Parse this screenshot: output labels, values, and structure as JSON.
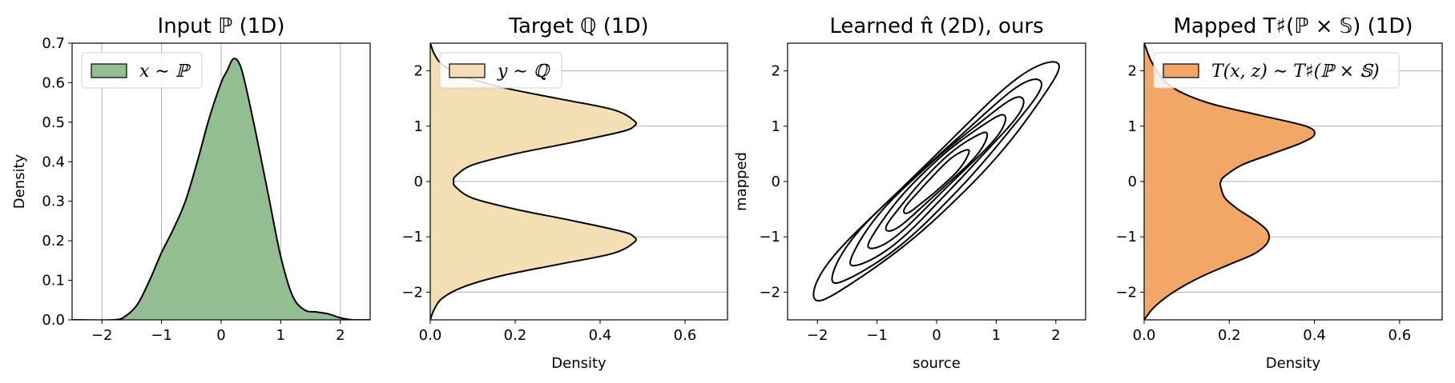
{
  "colors": {
    "input_fill": "#93be91",
    "target_fill": "#f4dfb4",
    "mapped_fill": "#f2a766",
    "grid": "#b0b0b0",
    "line": "#000000"
  },
  "chart_data": [
    {
      "type": "area",
      "title": "Input ℙ (1D)",
      "xlabel": "",
      "ylabel": "Density",
      "orientation": "vertical",
      "xlim": [
        -2.5,
        2.5
      ],
      "ylim": [
        0,
        0.7
      ],
      "xticks": [
        -2,
        -1,
        0,
        1,
        2
      ],
      "yticks": [
        0.0,
        0.1,
        0.2,
        0.3,
        0.4,
        0.5,
        0.6,
        0.7
      ],
      "xtick_labels": [
        "−2",
        "−1",
        "0",
        "1",
        "2"
      ],
      "ytick_labels": [
        "0.0",
        "0.1",
        "0.2",
        "0.3",
        "0.4",
        "0.5",
        "0.6",
        "0.7"
      ],
      "grid": "vertical",
      "legend": {
        "label": "x ∼ ℙ",
        "position": "upper-left"
      },
      "series": [
        {
          "x": [
            -2.5,
            -1.8,
            -1.6,
            -1.4,
            -1.2,
            -1.0,
            -0.8,
            -0.6,
            -0.4,
            -0.2,
            0.0,
            0.1,
            0.2,
            0.3,
            0.4,
            0.6,
            0.8,
            1.0,
            1.2,
            1.4,
            1.6,
            1.8,
            2.0,
            2.2,
            2.5
          ],
          "y": [
            0.0,
            0.0,
            0.01,
            0.04,
            0.1,
            0.17,
            0.23,
            0.3,
            0.4,
            0.51,
            0.6,
            0.63,
            0.66,
            0.65,
            0.6,
            0.46,
            0.31,
            0.16,
            0.06,
            0.025,
            0.02,
            0.015,
            0.005,
            0.0,
            0.0
          ]
        }
      ]
    },
    {
      "type": "area",
      "title": "Target ℚ (1D)",
      "xlabel": "Density",
      "ylabel": "",
      "orientation": "horizontal",
      "xlim": [
        0,
        0.7
      ],
      "ylim": [
        -2.5,
        2.5
      ],
      "xticks": [
        0.0,
        0.2,
        0.4,
        0.6
      ],
      "yticks": [
        -2,
        -1,
        0,
        1,
        2
      ],
      "xtick_labels": [
        "0.0",
        "0.2",
        "0.4",
        "0.6"
      ],
      "ytick_labels": [
        "−2",
        "−1",
        "0",
        "1",
        "2"
      ],
      "grid": "horizontal",
      "legend": {
        "label": "y ∼ ℚ",
        "position": "upper-left"
      },
      "series": [
        {
          "y": [
            -2.5,
            -2.3,
            -2.1,
            -1.9,
            -1.7,
            -1.5,
            -1.3,
            -1.1,
            -1.0,
            -0.9,
            -0.7,
            -0.5,
            -0.3,
            -0.1,
            0.0,
            0.1,
            0.3,
            0.5,
            0.7,
            0.9,
            1.0,
            1.1,
            1.3,
            1.5,
            1.7,
            1.9,
            2.1,
            2.3,
            2.5
          ],
          "x": [
            0.0,
            0.01,
            0.03,
            0.08,
            0.17,
            0.3,
            0.43,
            0.48,
            0.48,
            0.45,
            0.33,
            0.2,
            0.1,
            0.06,
            0.055,
            0.06,
            0.1,
            0.2,
            0.33,
            0.45,
            0.48,
            0.48,
            0.43,
            0.3,
            0.17,
            0.08,
            0.03,
            0.01,
            0.0
          ]
        }
      ]
    },
    {
      "type": "contour",
      "title": "Learned π̂ (2D), ours",
      "xlabel": "source",
      "ylabel": "mapped",
      "xlim": [
        -2.5,
        2.5
      ],
      "ylim": [
        -2.5,
        2.5
      ],
      "xticks": [
        -2,
        -1,
        0,
        1,
        2
      ],
      "yticks": [
        -2,
        -1,
        0,
        1,
        2
      ],
      "xtick_labels": [
        "−2",
        "−1",
        "0",
        "1",
        "2"
      ],
      "ytick_labels": [
        "−2",
        "−1",
        "0",
        "1",
        "2"
      ],
      "grid": "none",
      "levels": [
        1,
        2,
        3,
        4,
        5,
        6
      ]
    },
    {
      "type": "area",
      "title": "Mapped T♯(ℙ × 𝕊) (1D)",
      "xlabel": "Density",
      "ylabel": "",
      "orientation": "horizontal",
      "xlim": [
        0,
        0.7
      ],
      "ylim": [
        -2.5,
        2.5
      ],
      "xticks": [
        0.0,
        0.2,
        0.4,
        0.6
      ],
      "yticks": [
        -2,
        -1,
        0,
        1,
        2
      ],
      "xtick_labels": [
        "0.0",
        "0.2",
        "0.4",
        "0.6"
      ],
      "ytick_labels": [
        "−2",
        "−1",
        "0",
        "1",
        "2"
      ],
      "grid": "horizontal",
      "legend": {
        "label": "T(x, z) ∼ T♯(ℙ × 𝕊)",
        "position": "upper-left"
      },
      "series": [
        {
          "y": [
            -2.5,
            -2.3,
            -2.1,
            -1.9,
            -1.7,
            -1.5,
            -1.3,
            -1.1,
            -0.9,
            -0.7,
            -0.5,
            -0.3,
            -0.1,
            0.0,
            0.1,
            0.3,
            0.5,
            0.7,
            0.85,
            1.0,
            1.2,
            1.4,
            1.6,
            1.8,
            2.0,
            2.2,
            2.4,
            2.5
          ],
          "x": [
            0.0,
            0.02,
            0.05,
            0.09,
            0.14,
            0.2,
            0.26,
            0.29,
            0.29,
            0.26,
            0.22,
            0.19,
            0.18,
            0.18,
            0.19,
            0.23,
            0.3,
            0.37,
            0.4,
            0.38,
            0.27,
            0.16,
            0.09,
            0.05,
            0.03,
            0.015,
            0.005,
            0.0
          ]
        }
      ]
    }
  ]
}
